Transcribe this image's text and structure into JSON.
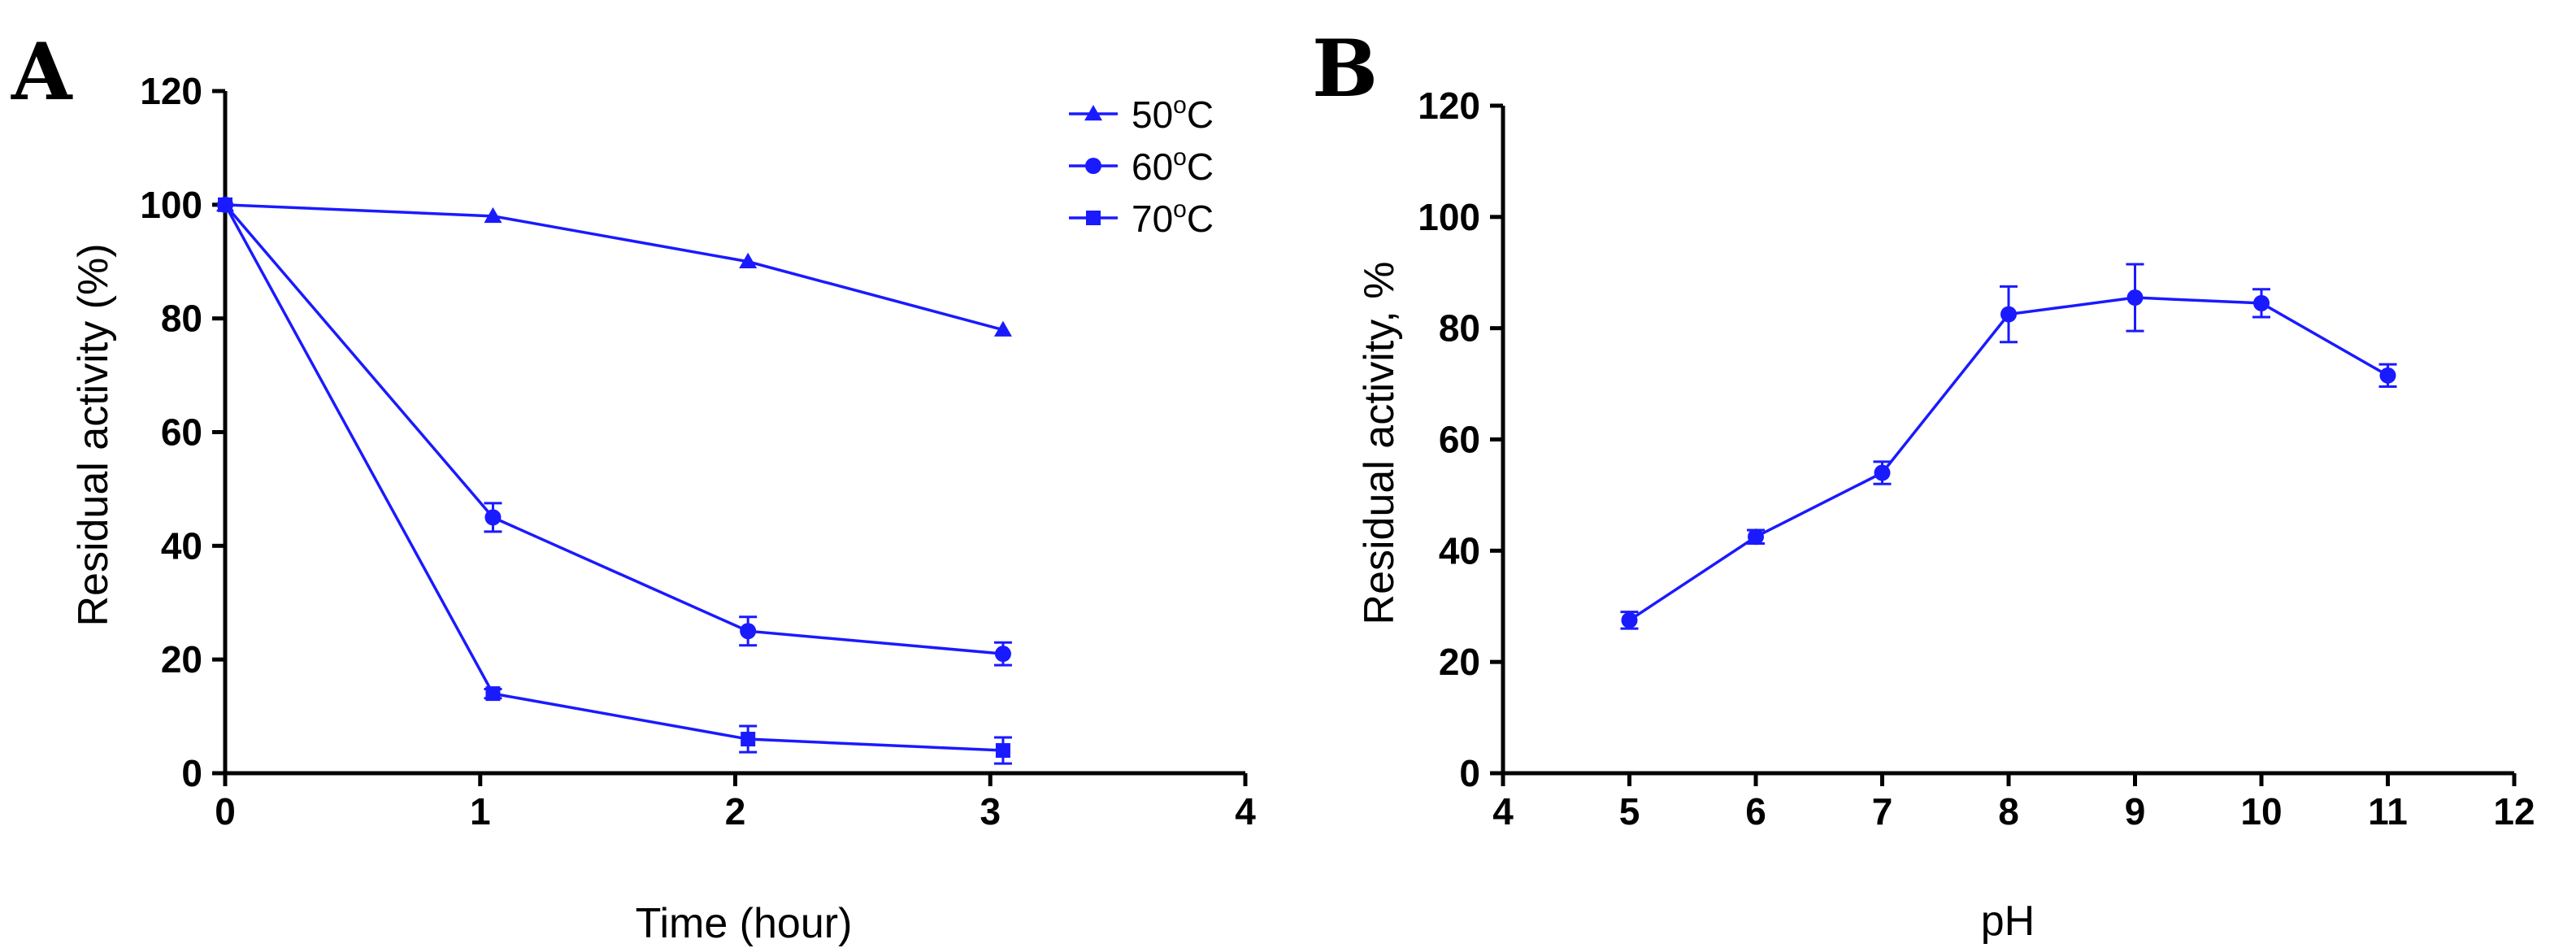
{
  "chart_data": [
    {
      "panel": "A",
      "type": "line",
      "title": "",
      "xlabel": "Time (hour)",
      "ylabel": "Residual activity (%)",
      "xlim": [
        0,
        4
      ],
      "ylim": [
        0,
        120
      ],
      "xticks": [
        0,
        1,
        2,
        3,
        4
      ],
      "yticks": [
        0,
        20,
        40,
        60,
        80,
        100,
        120
      ],
      "legend_position": "top-right",
      "color": "#1a1aff",
      "series": [
        {
          "name": "50°C",
          "name_base": "50",
          "name_sup": "o",
          "name_unit": "C",
          "marker": "triangle",
          "x": [
            0,
            1.05,
            2.05,
            3.05
          ],
          "y": [
            100,
            98,
            90,
            78
          ],
          "err": [
            0,
            0,
            0,
            0
          ]
        },
        {
          "name": "60°C",
          "name_base": "60",
          "name_sup": "o",
          "name_unit": "C",
          "marker": "circle",
          "x": [
            0,
            1.05,
            2.05,
            3.05
          ],
          "y": [
            100,
            45,
            25,
            21
          ],
          "err": [
            0,
            2.5,
            2.5,
            2
          ]
        },
        {
          "name": "70°C",
          "name_base": "70",
          "name_sup": "o",
          "name_unit": "C",
          "marker": "square",
          "x": [
            0,
            1.05,
            2.05,
            3.05
          ],
          "y": [
            100,
            14,
            6,
            4
          ],
          "err": [
            0,
            0.8,
            2.3,
            2.3
          ]
        }
      ]
    },
    {
      "panel": "B",
      "type": "line",
      "title": "",
      "xlabel": "pH",
      "ylabel": "Residual activity, %",
      "xlim": [
        4,
        12
      ],
      "ylim": [
        0,
        120
      ],
      "xticks": [
        4,
        5,
        6,
        7,
        8,
        9,
        10,
        11,
        12
      ],
      "yticks": [
        0,
        20,
        40,
        60,
        80,
        100,
        120
      ],
      "color": "#1a1aff",
      "series": [
        {
          "name": "Residual activity",
          "marker": "circle",
          "x": [
            5,
            6,
            7,
            8,
            9,
            10,
            11
          ],
          "y": [
            27.5,
            42.5,
            54,
            82.5,
            85.5,
            84.5,
            71.5
          ],
          "err": [
            1.5,
            1.2,
            2,
            5,
            6,
            2.5,
            2
          ]
        }
      ]
    }
  ]
}
